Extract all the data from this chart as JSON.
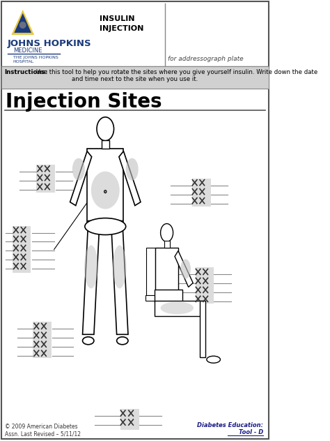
{
  "title": "Injection Sites",
  "instructions_bold": "Instructions:",
  "instructions_rest": " Use this tool to help you rotate the sites where you give yourself insulin. Write down the date",
  "instructions_line2": "and time next to the site when you use it.",
  "jh_text1": "JOHNS HOPKINS",
  "jh_text2": "MEDICINE",
  "jh_text3": "THE JOHNS HOPKINS\nHOSPITAL",
  "header_line1": "INSULIN",
  "header_line2": "INJECTION",
  "addressograph": "for addressograph plate",
  "copyright": "© 2009 American Diabetes\nAssn. Last Revised – 5/11/12",
  "footer_right1": "Diabetes Education:",
  "footer_right2": "Tool - D",
  "bg_color": "#ffffff",
  "gray_color": "#c0c0c0",
  "dark_gray": "#888888",
  "instruction_bg": "#d0d0d0",
  "line_color": "#333333",
  "x_color": "#333333",
  "blue_color": "#1a3a7a",
  "logo_triangle_outer": "#e8c840",
  "logo_triangle_inner": "#1a3a7a",
  "logo_dome": "#888888"
}
